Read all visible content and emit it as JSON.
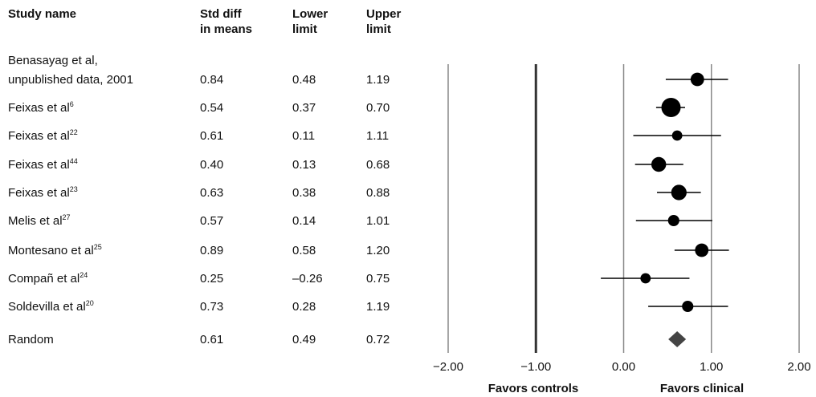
{
  "headers": {
    "study": "Study name",
    "smd_line1": "Std diff",
    "smd_line2": "in means",
    "lower_line1": "Lower",
    "lower_line2": "limit",
    "upper_line1": "Upper",
    "upper_line2": "limit"
  },
  "chart_data": {
    "type": "forest",
    "xlim": [
      -2.0,
      2.0
    ],
    "ticks": [
      "−2.00",
      "−1.00",
      "0.00",
      "1.00",
      "2.00"
    ],
    "tick_values": [
      -2,
      -1,
      0,
      1,
      2
    ],
    "xlabel_left": "Favors controls",
    "xlabel_right": "Favors clinical",
    "studies": [
      {
        "name": "Benasayag et al,",
        "name2": "unpublished data, 2001",
        "sup": "",
        "smd": "0.84",
        "lower": "0.48",
        "upper": "1.19",
        "v": 0.84,
        "lo": 0.48,
        "hi": 1.19,
        "weight": 0.55
      },
      {
        "name": "Feixas et al",
        "sup": "6",
        "smd": "0.54",
        "lower": "0.37",
        "upper": "0.70",
        "v": 0.54,
        "lo": 0.37,
        "hi": 0.7,
        "weight": 1.0
      },
      {
        "name": "Feixas et al",
        "sup": "22",
        "smd": "0.61",
        "lower": "0.11",
        "upper": "1.11",
        "v": 0.61,
        "lo": 0.11,
        "hi": 1.11,
        "weight": 0.3
      },
      {
        "name": "Feixas et al",
        "sup": "44",
        "smd": "0.40",
        "lower": "0.13",
        "upper": "0.68",
        "v": 0.4,
        "lo": 0.13,
        "hi": 0.68,
        "weight": 0.65
      },
      {
        "name": "Feixas et al",
        "sup": "23",
        "smd": "0.63",
        "lower": "0.38",
        "upper": "0.88",
        "v": 0.63,
        "lo": 0.38,
        "hi": 0.88,
        "weight": 0.7
      },
      {
        "name": "Melis et al",
        "sup": "27",
        "smd": "0.57",
        "lower": "0.14",
        "upper": "1.01",
        "v": 0.57,
        "lo": 0.14,
        "hi": 1.01,
        "weight": 0.38
      },
      {
        "name": "Montesano et al",
        "sup": "25",
        "smd": "0.89",
        "lower": "0.58",
        "upper": "1.20",
        "v": 0.89,
        "lo": 0.58,
        "hi": 1.2,
        "weight": 0.55
      },
      {
        "name": "Compañ et al",
        "sup": "24",
        "smd": "0.25",
        "lower": "–0.26",
        "upper": "0.75",
        "v": 0.25,
        "lo": -0.26,
        "hi": 0.75,
        "weight": 0.3
      },
      {
        "name": "Soldevilla et al",
        "sup": "20",
        "smd": "0.73",
        "lower": "0.28",
        "upper": "1.19",
        "v": 0.73,
        "lo": 0.28,
        "hi": 1.19,
        "weight": 0.38
      }
    ],
    "summary": {
      "name": "Random",
      "smd": "0.61",
      "lower": "0.49",
      "upper": "0.72",
      "v": 0.61,
      "lo": 0.49,
      "hi": 0.72
    },
    "colors": {
      "marker": "#000000",
      "diamond": "#444444",
      "gridline": "#888888",
      "null_line": "#333333"
    }
  }
}
